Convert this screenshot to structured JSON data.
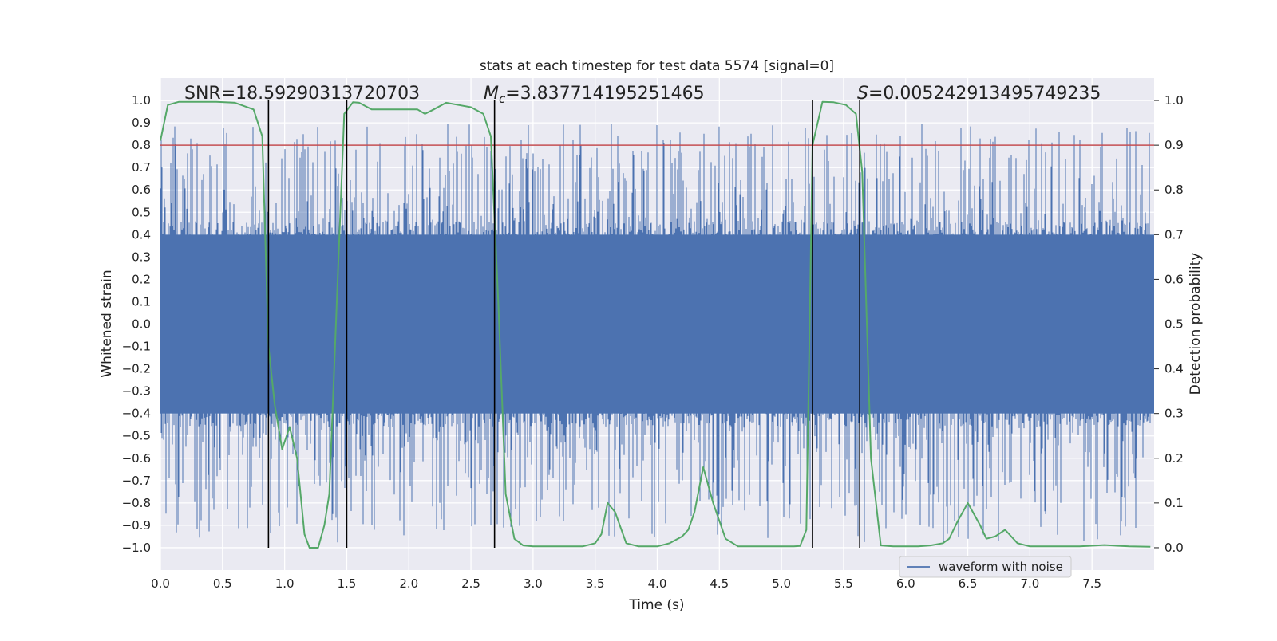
{
  "chart_data": {
    "type": "line",
    "title": "stats at each timestep for test data 5574 [signal=0]",
    "xlabel": "Time (s)",
    "ylabel_left": "Whitened strain",
    "ylabel_right": "Detection probability",
    "xlim": [
      0.0,
      8.0
    ],
    "ylim_left": [
      -1.1,
      1.1
    ],
    "ylim_right": [
      -0.05,
      1.05
    ],
    "x_ticks": [
      "0.0",
      "0.5",
      "1.0",
      "1.5",
      "2.0",
      "2.5",
      "3.0",
      "3.5",
      "4.0",
      "4.5",
      "5.0",
      "5.5",
      "6.0",
      "6.5",
      "7.0",
      "7.5"
    ],
    "x_tick_values": [
      0.0,
      0.5,
      1.0,
      1.5,
      2.0,
      2.5,
      3.0,
      3.5,
      4.0,
      4.5,
      5.0,
      5.5,
      6.0,
      6.5,
      7.0,
      7.5
    ],
    "y_left_ticks": [
      "1.0",
      "0.9",
      "0.8",
      "0.7",
      "0.6",
      "0.5",
      "0.4",
      "0.3",
      "0.2",
      "0.1",
      "0.0",
      "−0.1",
      "−0.2",
      "−0.3",
      "−0.4",
      "−0.5",
      "−0.6",
      "−0.7",
      "−0.8",
      "−0.9",
      "−1.0"
    ],
    "y_left_tick_values": [
      1.0,
      0.9,
      0.8,
      0.7,
      0.6,
      0.5,
      0.4,
      0.3,
      0.2,
      0.1,
      0.0,
      -0.1,
      -0.2,
      -0.3,
      -0.4,
      -0.5,
      -0.6,
      -0.7,
      -0.8,
      -0.9,
      -1.0
    ],
    "y_right_ticks": [
      "1.0",
      "0.9",
      "0.8",
      "0.7",
      "0.6",
      "0.5",
      "0.4",
      "0.3",
      "0.2",
      "0.1",
      "0.0"
    ],
    "y_right_tick_values": [
      1.0,
      0.9,
      0.8,
      0.7,
      0.6,
      0.5,
      0.4,
      0.3,
      0.2,
      0.1,
      0.0
    ],
    "grid": true,
    "legend": {
      "placement": "bottom-right",
      "entries": [
        "waveform with noise"
      ]
    },
    "annotations": {
      "snr": "SNR=18.59290313720703",
      "mc_symbol": "M",
      "mc_sub": "c",
      "mc_value": "=3.837714195251465",
      "s_symbol": "S",
      "s_value": "=0.005242913495749235"
    },
    "threshold": {
      "axis": "right",
      "value": 0.9,
      "color": "#c44e52"
    },
    "vertical_markers": [
      0.87,
      1.5,
      2.69,
      5.25,
      5.63
    ],
    "colors": {
      "waveform": "#4c72b0",
      "probability": "#55a868",
      "marker": "#000000",
      "background": "#eaeaf2",
      "grid": "#ffffff"
    },
    "waveform": {
      "name": "waveform with noise",
      "duration_s": 8.0,
      "core_amplitude": 0.4,
      "peak_amplitude_max": 0.9,
      "peak_amplitude_min": -0.98
    },
    "detection_probability": {
      "x": [
        0.0,
        0.06,
        0.15,
        0.3,
        0.45,
        0.6,
        0.75,
        0.82,
        0.87,
        0.92,
        0.98,
        1.04,
        1.1,
        1.16,
        1.2,
        1.27,
        1.32,
        1.36,
        1.42,
        1.48,
        1.55,
        1.6,
        1.7,
        1.8,
        1.9,
        2.0,
        2.07,
        2.13,
        2.2,
        2.3,
        2.4,
        2.5,
        2.6,
        2.66,
        2.72,
        2.78,
        2.85,
        2.92,
        3.0,
        3.1,
        3.2,
        3.3,
        3.4,
        3.5,
        3.55,
        3.6,
        3.66,
        3.75,
        3.85,
        4.0,
        4.1,
        4.2,
        4.25,
        4.3,
        4.37,
        4.45,
        4.55,
        4.65,
        4.75,
        4.85,
        5.0,
        5.1,
        5.15,
        5.2,
        5.25,
        5.33,
        5.42,
        5.52,
        5.6,
        5.65,
        5.72,
        5.8,
        5.9,
        6.0,
        6.1,
        6.2,
        6.3,
        6.35,
        6.42,
        6.5,
        6.6,
        6.65,
        6.72,
        6.8,
        6.9,
        7.0,
        7.2,
        7.4,
        7.6,
        7.8,
        7.97
      ],
      "y": [
        0.91,
        0.99,
        0.997,
        0.997,
        0.997,
        0.995,
        0.98,
        0.92,
        0.45,
        0.32,
        0.22,
        0.27,
        0.2,
        0.03,
        0.0,
        0.0,
        0.05,
        0.12,
        0.55,
        0.97,
        0.996,
        0.995,
        0.98,
        0.98,
        0.98,
        0.98,
        0.98,
        0.97,
        0.98,
        0.995,
        0.99,
        0.985,
        0.97,
        0.92,
        0.55,
        0.12,
        0.02,
        0.005,
        0.003,
        0.003,
        0.003,
        0.003,
        0.003,
        0.01,
        0.03,
        0.1,
        0.08,
        0.01,
        0.003,
        0.003,
        0.01,
        0.025,
        0.04,
        0.08,
        0.18,
        0.1,
        0.02,
        0.003,
        0.003,
        0.003,
        0.003,
        0.003,
        0.004,
        0.04,
        0.9,
        0.997,
        0.996,
        0.99,
        0.97,
        0.84,
        0.2,
        0.005,
        0.003,
        0.003,
        0.003,
        0.005,
        0.01,
        0.02,
        0.06,
        0.1,
        0.05,
        0.02,
        0.025,
        0.04,
        0.01,
        0.003,
        0.003,
        0.003,
        0.006,
        0.003,
        0.002
      ]
    }
  }
}
